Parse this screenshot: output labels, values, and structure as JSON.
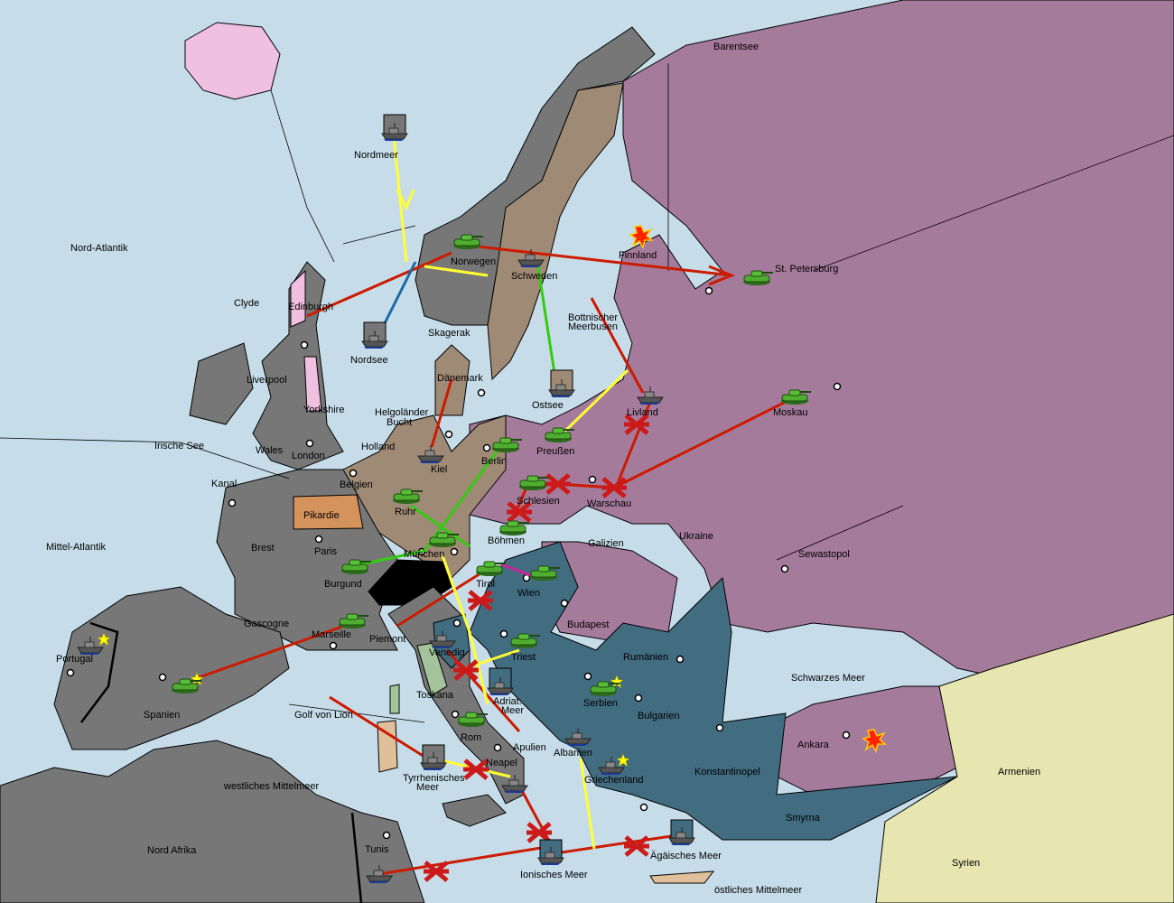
{
  "colors": {
    "sea": "#c6dde9",
    "russia": "#a57b9b",
    "germany": "#9f8a76",
    "france_italy_england": "#777777",
    "austria": "#426c80",
    "armenia_syria": "#e8e6b0",
    "pikardie": "#d4925c",
    "toscana": "#a3c49a",
    "iceland": "#f0c0e0",
    "move": "#cc1a00",
    "support_yellow": "#ffff33",
    "support_green": "#33cc11",
    "convoy_blue": "#1a6aa8",
    "magenta": "#cc2299",
    "failed_mark": "#cc1a1a"
  },
  "labels": [
    "Barentsee",
    "Nordmeer",
    "Nord-Atlantik",
    "Finnland",
    "St. Petersburg",
    "Norwegen",
    "Schweden",
    "Clyde",
    "Edinburgh",
    "Nordsee",
    "Skagerak",
    "Bottnischer",
    "Meerbusen",
    "Liverpool",
    "Dänemark",
    "Ostsee",
    "Livland",
    "Moskau",
    "Yorkshire",
    "Helgoländer",
    "Bucht",
    "Irische See",
    "Wales",
    "London",
    "Holland",
    "Kiel",
    "Berlin",
    "Preußen",
    "Kanal",
    "Belgien",
    "Schlesien",
    "Warschau",
    "Pikardie",
    "Ruhr",
    "Böhmen",
    "Ukraine",
    "Mittel-Atlantik",
    "Brest",
    "Paris",
    "München",
    "Galizien",
    "Sewastopol",
    "Burgund",
    "Tirol",
    "Wien",
    "Gascogne",
    "Budapest",
    "Piemont",
    "Marseille",
    "Venedig",
    "Triest",
    "Rumänien",
    "Portugal",
    "Schwarzes Meer",
    "Spanien",
    "Toskana",
    "Serbien",
    "Adriat.",
    "Meer",
    "Bulgarien",
    "Golf von Lion",
    "Rom",
    "Apulien",
    "Ankara",
    "Albanien",
    "Neapel",
    "Konstantinopel",
    "Tyrrhenisches",
    "Meer",
    "Griechenland",
    "Armenien",
    "westliches Mittelmeer",
    "Smyrna",
    "Nord Afrika",
    "Tunis",
    "Ägäisches Meer",
    "Ionisches Meer",
    "Syrien",
    "östliches Mittelmeer"
  ],
  "units": [
    {
      "type": "fleet",
      "province": "Nordmeer"
    },
    {
      "type": "army",
      "province": "Norwegen"
    },
    {
      "type": "fleet",
      "province": "Schweden"
    },
    {
      "type": "fleet",
      "province": "Nordsee"
    },
    {
      "type": "army",
      "province": "St. Petersburg"
    },
    {
      "type": "fleet",
      "province": "Ostsee"
    },
    {
      "type": "fleet",
      "province": "Livland"
    },
    {
      "type": "army",
      "province": "Moskau"
    },
    {
      "type": "fleet",
      "province": "Kiel"
    },
    {
      "type": "army",
      "province": "Berlin"
    },
    {
      "type": "army",
      "province": "Preußen"
    },
    {
      "type": "army",
      "province": "Schlesien"
    },
    {
      "type": "army",
      "province": "Ruhr"
    },
    {
      "type": "army",
      "province": "Böhmen"
    },
    {
      "type": "army",
      "province": "München"
    },
    {
      "type": "army",
      "province": "Burgund"
    },
    {
      "type": "army",
      "province": "Tirol"
    },
    {
      "type": "army",
      "province": "Wien"
    },
    {
      "type": "army",
      "province": "Marseille"
    },
    {
      "type": "fleet",
      "province": "Portugal"
    },
    {
      "type": "army",
      "province": "Spanien"
    },
    {
      "type": "fleet",
      "province": "Venedig"
    },
    {
      "type": "army",
      "province": "Triest"
    },
    {
      "type": "fleet",
      "province": "Adriat. Meer"
    },
    {
      "type": "army",
      "province": "Rom"
    },
    {
      "type": "fleet",
      "province": "Tyrrhenisches Meer"
    },
    {
      "type": "fleet",
      "province": "Neapel"
    },
    {
      "type": "army",
      "province": "Serbien"
    },
    {
      "type": "fleet",
      "province": "Albanien"
    },
    {
      "type": "fleet",
      "province": "Griechenland"
    },
    {
      "type": "fleet",
      "province": "Ionisches Meer"
    },
    {
      "type": "fleet",
      "province": "Ägäisches Meer"
    },
    {
      "type": "fleet",
      "province": "Tunis"
    }
  ]
}
